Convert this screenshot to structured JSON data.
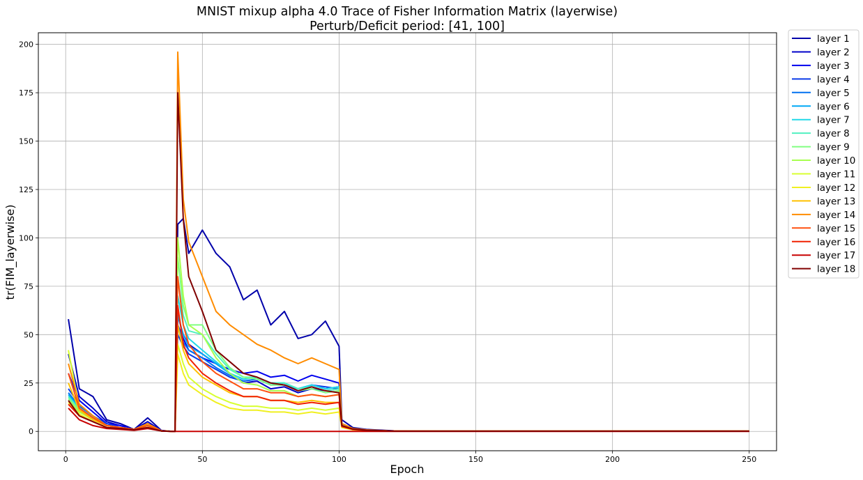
{
  "chart_data": {
    "type": "line",
    "title": "MNIST mixup alpha 4.0 Trace of Fisher Information Matrix (layerwise)",
    "subtitle": "Perturb/Deficit period: [41, 100]",
    "xlabel": "Epoch",
    "ylabel": "tr(FIM_layerwise)",
    "xlim": [
      -10,
      260
    ],
    "ylim": [
      -10,
      206
    ],
    "xticks": [
      0,
      50,
      100,
      150,
      200,
      250
    ],
    "yticks": [
      0,
      25,
      50,
      75,
      100,
      125,
      150,
      175,
      200
    ],
    "grid": true,
    "legend_position": "outside-right",
    "deficit_period": [
      41,
      100
    ],
    "x": [
      1,
      5,
      10,
      15,
      20,
      25,
      30,
      35,
      39,
      40,
      41,
      43,
      45,
      50,
      55,
      60,
      65,
      70,
      75,
      80,
      85,
      90,
      95,
      100,
      101,
      105,
      110,
      120,
      150,
      200,
      250
    ],
    "series": [
      {
        "name": "layer 1",
        "color": "#0000aa",
        "values": [
          58,
          22,
          18,
          6,
          4,
          1,
          7,
          0.5,
          0,
          0,
          107,
          110,
          92,
          104,
          92,
          85,
          68,
          73,
          55,
          62,
          48,
          50,
          57,
          44,
          6,
          2,
          1,
          0.3,
          0.2,
          0.2,
          0.2
        ]
      },
      {
        "name": "layer 2",
        "color": "#0000c8",
        "values": [
          40,
          18,
          12,
          5,
          3,
          1,
          5,
          0.4,
          0,
          0,
          60,
          50,
          45,
          40,
          35,
          30,
          25,
          26,
          22,
          23,
          20,
          22,
          21,
          22,
          4,
          1.5,
          0.8,
          0.2,
          0.1,
          0.1,
          0.1
        ]
      },
      {
        "name": "layer 3",
        "color": "#0000ee",
        "values": [
          30,
          16,
          10,
          4,
          3,
          1,
          4,
          0.4,
          0,
          0,
          55,
          48,
          42,
          38,
          35,
          32,
          30,
          31,
          28,
          29,
          26,
          29,
          27,
          25,
          4,
          1.5,
          0.8,
          0.2,
          0.1,
          0.1,
          0.1
        ]
      },
      {
        "name": "layer 4",
        "color": "#0a3ae8",
        "values": [
          22,
          14,
          8,
          4,
          2,
          1,
          3,
          0.3,
          0,
          0,
          50,
          44,
          40,
          36,
          32,
          28,
          26,
          27,
          24,
          24,
          22,
          24,
          23,
          22,
          3,
          1.2,
          0.6,
          0.2,
          0.1,
          0.1,
          0.1
        ]
      },
      {
        "name": "layer 5",
        "color": "#0070f0",
        "values": [
          20,
          13,
          8,
          3,
          2,
          1,
          3,
          0.3,
          0,
          0,
          55,
          46,
          42,
          38,
          33,
          29,
          26,
          27,
          24,
          25,
          22,
          24,
          22,
          23,
          3,
          1.2,
          0.6,
          0.2,
          0.1,
          0.1,
          0.1
        ]
      },
      {
        "name": "layer 6",
        "color": "#00a8f5",
        "values": [
          19,
          12,
          7,
          3,
          2,
          1,
          3,
          0.3,
          0,
          0,
          60,
          50,
          44,
          40,
          35,
          30,
          27,
          28,
          25,
          25,
          22,
          24,
          22,
          23,
          3,
          1.2,
          0.6,
          0.2,
          0.1,
          0.1,
          0.1
        ]
      },
      {
        "name": "layer 7",
        "color": "#20d8e8",
        "values": [
          18,
          12,
          7,
          3,
          2,
          1,
          3,
          0.3,
          0,
          0,
          70,
          55,
          48,
          42,
          36,
          30,
          27,
          28,
          25,
          25,
          22,
          24,
          22,
          23,
          3,
          1.2,
          0.6,
          0.2,
          0.1,
          0.1,
          0.1
        ]
      },
      {
        "name": "layer 8",
        "color": "#50f0c0",
        "values": [
          18,
          11,
          7,
          3,
          2,
          1,
          3,
          0.3,
          0,
          0,
          80,
          60,
          52,
          50,
          40,
          32,
          28,
          28,
          25,
          25,
          22,
          23,
          21,
          22,
          3,
          1.2,
          0.6,
          0.2,
          0.1,
          0.1,
          0.1
        ]
      },
      {
        "name": "layer 9",
        "color": "#80ff80",
        "values": [
          17,
          11,
          6,
          3,
          2,
          1,
          3,
          0.3,
          0,
          0,
          90,
          65,
          55,
          55,
          42,
          33,
          28,
          27,
          24,
          24,
          21,
          22,
          20,
          21,
          3,
          1.2,
          0.6,
          0.2,
          0.1,
          0.1,
          0.1
        ]
      },
      {
        "name": "layer 10",
        "color": "#a8ff50",
        "values": [
          16,
          10,
          6,
          3,
          2,
          1,
          3,
          0.3,
          0,
          0,
          100,
          70,
          55,
          50,
          38,
          30,
          25,
          24,
          21,
          21,
          18,
          19,
          18,
          19,
          3,
          1.1,
          0.5,
          0.2,
          0.1,
          0.1,
          0.1
        ]
      },
      {
        "name": "layer 11",
        "color": "#d8ff30",
        "values": [
          42,
          12,
          6,
          3,
          2,
          1,
          3,
          0.3,
          0,
          0,
          45,
          35,
          28,
          22,
          18,
          15,
          13,
          13,
          12,
          12,
          11,
          12,
          11,
          12,
          2,
          1,
          0.5,
          0.2,
          0.1,
          0.1,
          0.1
        ]
      },
      {
        "name": "layer 12",
        "color": "#f0f020",
        "values": [
          15,
          9,
          5,
          2,
          1.5,
          0.8,
          2,
          0.2,
          0,
          0,
          40,
          30,
          24,
          19,
          15,
          12,
          11,
          11,
          10,
          10,
          9,
          10,
          9,
          10,
          2,
          0.8,
          0.4,
          0.1,
          0.1,
          0.1,
          0.1
        ]
      },
      {
        "name": "layer 13",
        "color": "#ffc000",
        "values": [
          25,
          11,
          6,
          3,
          2,
          1,
          3,
          0.3,
          0,
          0,
          55,
          42,
          35,
          28,
          24,
          20,
          18,
          18,
          16,
          16,
          15,
          16,
          15,
          15,
          2.5,
          1,
          0.5,
          0.2,
          0.1,
          0.1,
          0.1
        ]
      },
      {
        "name": "layer 14",
        "color": "#ff8c00",
        "values": [
          35,
          14,
          8,
          3,
          2,
          1,
          4,
          0.3,
          0,
          0,
          196,
          120,
          98,
          80,
          62,
          55,
          50,
          45,
          42,
          38,
          35,
          38,
          35,
          32,
          4,
          1.5,
          0.8,
          0.2,
          0.1,
          0.1,
          0.1
        ]
      },
      {
        "name": "layer 15",
        "color": "#ff5010",
        "values": [
          30,
          12,
          7,
          3,
          2,
          1,
          3,
          0.3,
          0,
          0,
          80,
          55,
          45,
          36,
          30,
          26,
          22,
          22,
          20,
          20,
          18,
          19,
          18,
          19,
          3,
          1.2,
          0.6,
          0.2,
          0.1,
          0.1,
          0.1
        ]
      },
      {
        "name": "layer 16",
        "color": "#f02000",
        "values": [
          14,
          8,
          5,
          2,
          1.5,
          0.8,
          2,
          0.2,
          0,
          0,
          65,
          45,
          38,
          30,
          25,
          21,
          18,
          18,
          16,
          16,
          14,
          15,
          14,
          15,
          2.5,
          1,
          0.5,
          0.2,
          0.1,
          0.1,
          0.1
        ]
      },
      {
        "name": "layer 17",
        "color": "#c80000",
        "values": [
          12,
          6,
          3,
          1.5,
          1,
          0.5,
          1.5,
          0.2,
          0,
          0,
          0,
          0,
          0,
          0,
          0,
          0,
          0,
          0,
          0,
          0,
          0,
          0,
          0,
          0,
          0,
          0,
          0,
          0,
          0,
          0,
          0
        ]
      },
      {
        "name": "layer 18",
        "color": "#800000",
        "values": [
          16,
          8,
          5,
          2,
          1.5,
          0.8,
          2,
          0.2,
          0,
          0,
          175,
          110,
          80,
          62,
          42,
          36,
          30,
          28,
          25,
          24,
          21,
          23,
          21,
          20,
          3,
          1.2,
          0.6,
          0.2,
          0.1,
          0.1,
          0.1
        ]
      }
    ]
  }
}
